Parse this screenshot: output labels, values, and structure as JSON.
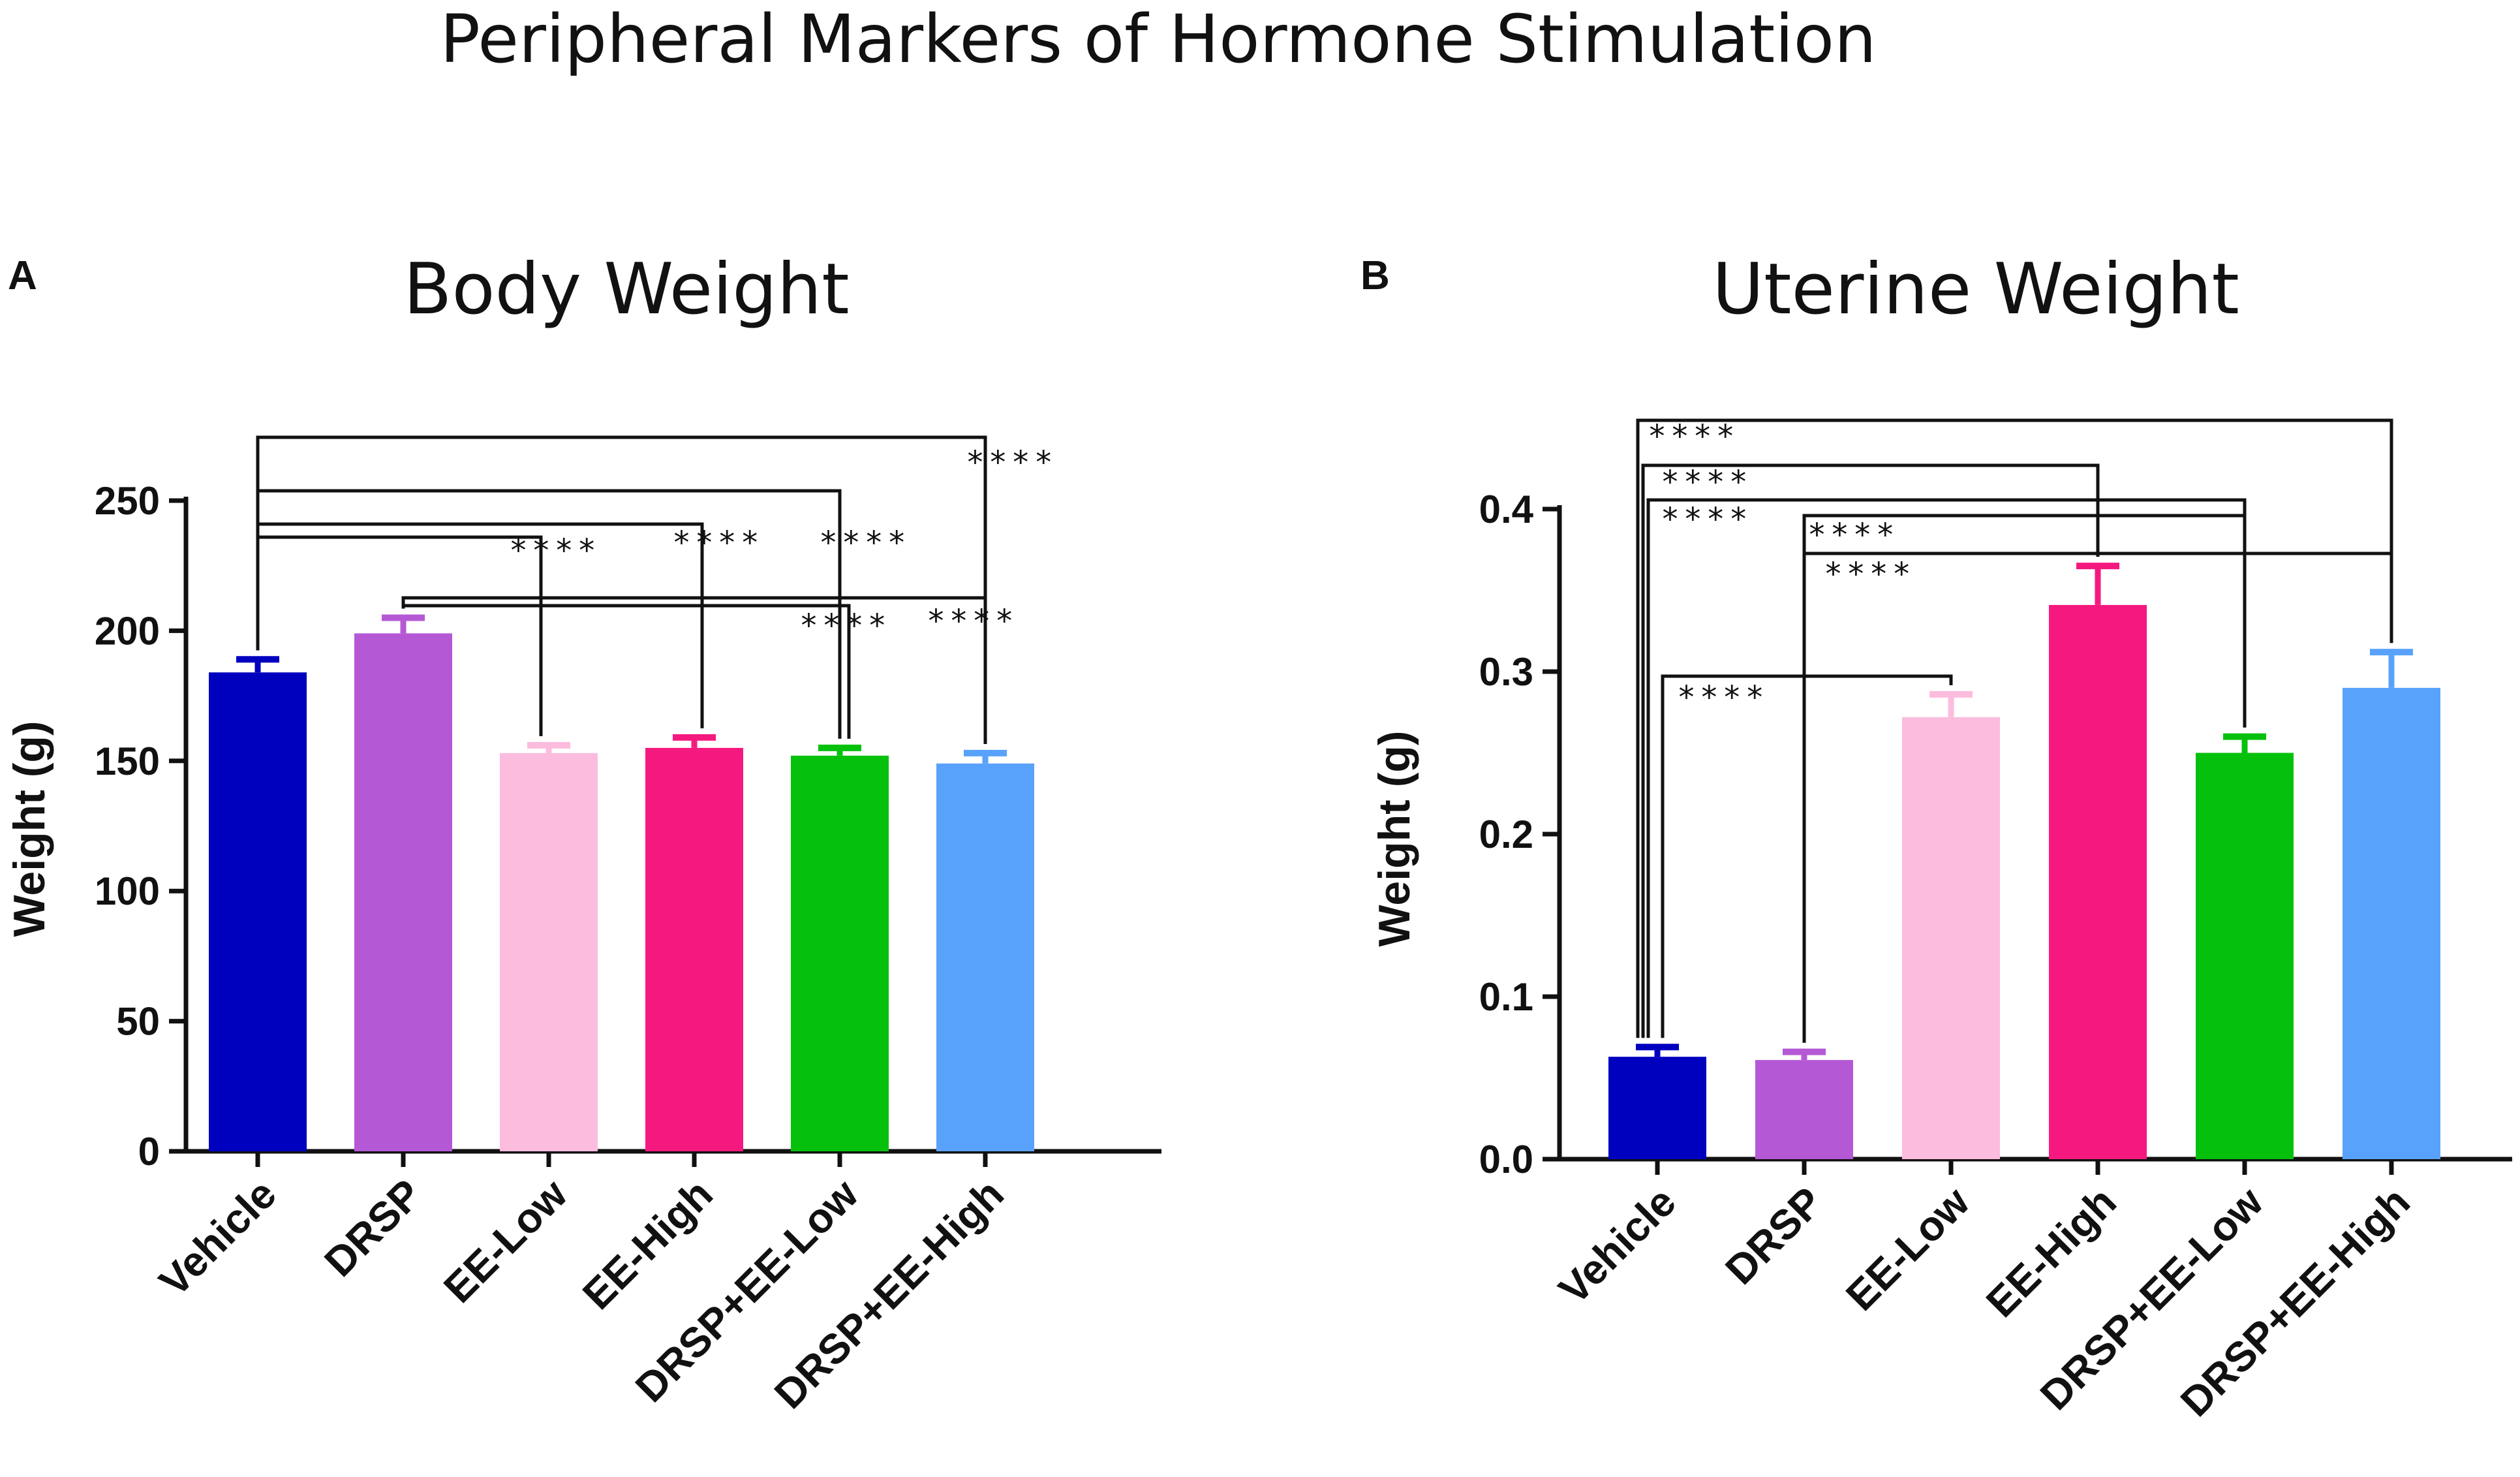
{
  "figure_title": "Peripheral Markers of Hormone Stimulation",
  "chart_data": [
    {
      "panel": "A",
      "type": "bar",
      "title": "Body Weight",
      "xlabel": "",
      "ylabel": "Weight  (g)",
      "ylim": [
        0,
        250
      ],
      "yticks": [
        0,
        50,
        100,
        150,
        200,
        250
      ],
      "ytick_labels": [
        "0",
        "50",
        "100",
        "150",
        "200",
        "250"
      ],
      "categories": [
        "Vehicle",
        "DRSP",
        "EE-Low",
        "EE-High",
        "DRSP+EE-Low",
        "DRSP+EE-High"
      ],
      "values": [
        184,
        199,
        153,
        155,
        152,
        149
      ],
      "errors": [
        5,
        6,
        3,
        4,
        3,
        4
      ],
      "colors": [
        "#0000bf",
        "#b558d6",
        "#fcbcdd",
        "#f5197f",
        "#06c10c",
        "#59a2fb"
      ],
      "significance": [
        {
          "from": "Vehicle",
          "to": "EE-Low",
          "label": "****"
        },
        {
          "from": "Vehicle",
          "to": "EE-High",
          "label": "****"
        },
        {
          "from": "Vehicle",
          "to": "DRSP+EE-Low",
          "label": "****"
        },
        {
          "from": "Vehicle",
          "to": "DRSP+EE-High",
          "label": "****"
        },
        {
          "from": "DRSP",
          "to": "DRSP+EE-Low",
          "label": "****"
        },
        {
          "from": "DRSP",
          "to": "DRSP+EE-High",
          "label": "****"
        }
      ]
    },
    {
      "panel": "B",
      "type": "bar",
      "title": "Uterine Weight",
      "xlabel": "",
      "ylabel": "Weight  (g)",
      "ylim": [
        0,
        0.4
      ],
      "yticks": [
        0,
        0.1,
        0.2,
        0.3,
        0.4
      ],
      "ytick_labels": [
        "0.0",
        "0.1",
        "0.2",
        "0.3",
        "0.4"
      ],
      "categories": [
        "Vehicle",
        "DRSP",
        "EE-Low",
        "EE-High",
        "DRSP+EE-Low",
        "DRSP+EE-High"
      ],
      "values": [
        0.063,
        0.061,
        0.272,
        0.341,
        0.25,
        0.29
      ],
      "errors": [
        0.006,
        0.005,
        0.014,
        0.024,
        0.01,
        0.022
      ],
      "colors": [
        "#0000bf",
        "#b558d6",
        "#fcbcdd",
        "#f5197f",
        "#06c10c",
        "#59a2fb"
      ],
      "significance": [
        {
          "from": "Vehicle",
          "to": "EE-Low",
          "label": "****"
        },
        {
          "from": "Vehicle",
          "to": "EE-High",
          "label": "****"
        },
        {
          "from": "Vehicle",
          "to": "DRSP+EE-Low",
          "label": "****"
        },
        {
          "from": "Vehicle",
          "to": "DRSP+EE-High",
          "label": "****"
        },
        {
          "from": "DRSP",
          "to": "DRSP+EE-Low",
          "label": "****"
        },
        {
          "from": "DRSP",
          "to": "DRSP+EE-High",
          "label": "****"
        }
      ]
    }
  ]
}
